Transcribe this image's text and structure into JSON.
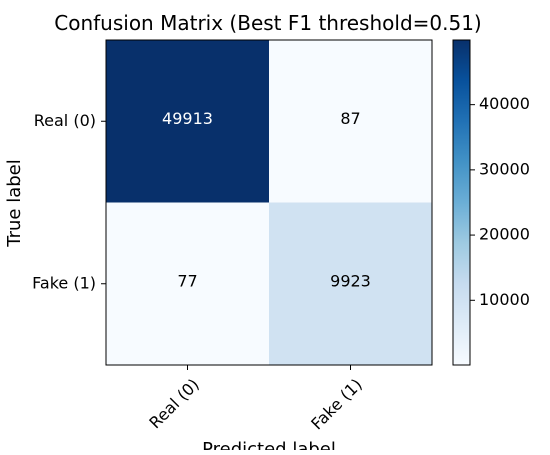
{
  "chart_data": {
    "type": "heatmap",
    "title": "Confusion Matrix (Best F1 threshold=0.51)",
    "xlabel": "Predicted label",
    "ylabel": "True label",
    "x_categories": [
      "Real (0)",
      "Fake (1)"
    ],
    "y_categories": [
      "Real (0)",
      "Fake (1)"
    ],
    "matrix": [
      [
        49913,
        87
      ],
      [
        77,
        9923
      ]
    ],
    "colormap": "Blues",
    "colorbar": {
      "vmin": 77,
      "vmax": 49913,
      "ticks": [
        10000,
        20000,
        30000,
        40000
      ]
    },
    "colors": {
      "low": "#f7fbff",
      "high": "#08306b",
      "text_dark": "#000000",
      "text_light": "#ffffff"
    }
  }
}
